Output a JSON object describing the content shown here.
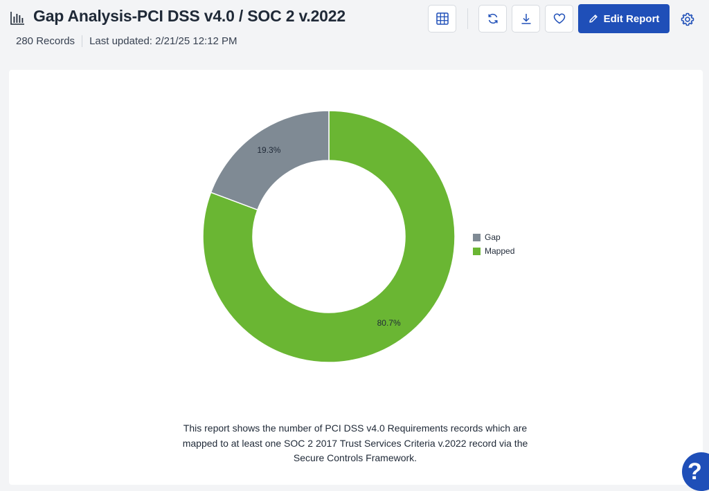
{
  "header": {
    "title": "Gap Analysis-PCI DSS v4.0 / SOC 2 v.2022",
    "records": "280 Records",
    "last_updated": "Last updated: 2/21/25 12:12 PM",
    "icons": {
      "report": "bar-chart-icon",
      "grid": "grid-icon",
      "refresh": "refresh-icon",
      "download": "download-icon",
      "favorite": "heart-icon",
      "edit": "pencil-icon",
      "settings": "gear-icon"
    },
    "edit_label": "Edit Report"
  },
  "colors": {
    "accent": "#1f4fb8",
    "gap": "#7f8a94",
    "mapped": "#6ab633"
  },
  "chart_data": {
    "type": "pie",
    "donut": true,
    "title": "",
    "legend_position": "right",
    "slices": [
      {
        "label": "Gap",
        "value": 19.3,
        "display": "19.3%",
        "color": "#7f8a94"
      },
      {
        "label": "Mapped",
        "value": 80.7,
        "display": "80.7%",
        "color": "#6ab633"
      }
    ]
  },
  "description": "This report shows the number of PCI DSS v4.0 Requirements records which are mapped to at least one SOC 2 2017 Trust Services Criteria v.2022 record via the Secure Controls Framework.",
  "help": {
    "label": "?"
  }
}
